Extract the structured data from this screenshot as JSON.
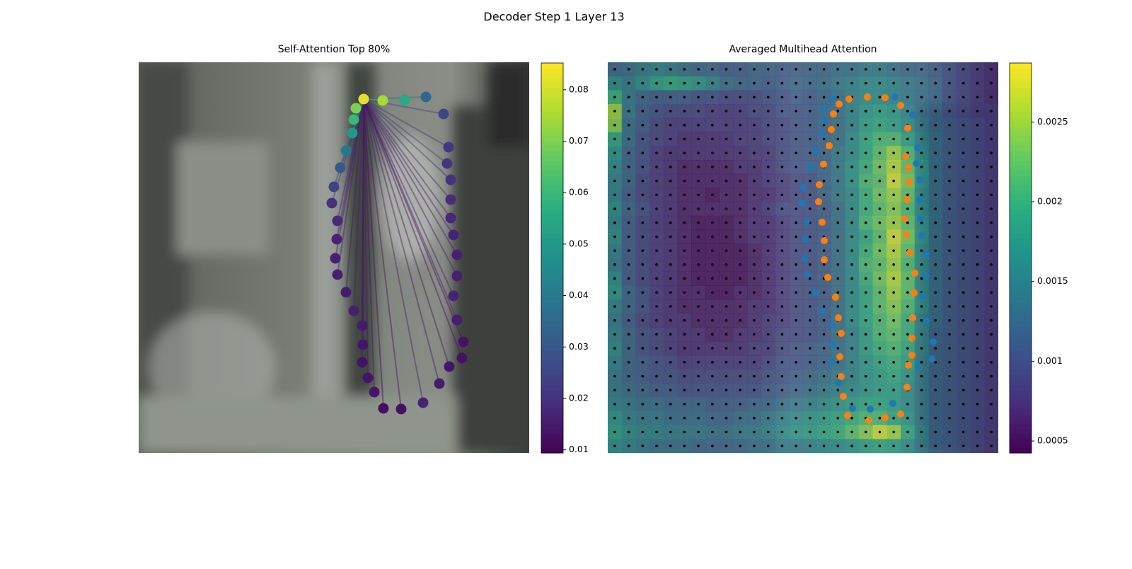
{
  "title": "Decoder Step 1 Layer 13",
  "chart_data": [
    {
      "type": "scatter",
      "title": "Self-Attention Top 80%",
      "colormap": "viridis",
      "xlim": [
        0,
        552
      ],
      "ylim": [
        552,
        0
      ],
      "clim": [
        0.0094,
        0.0852
      ],
      "cticks": [
        0.01,
        0.02,
        0.03,
        0.04,
        0.05,
        0.06,
        0.07,
        0.08
      ],
      "x": [
        318,
        345,
        376,
        406,
        431,
        438,
        436,
        441,
        441,
        441,
        445,
        450,
        450,
        445,
        450,
        459,
        457,
        439,
        425,
        402,
        371,
        346,
        333,
        324,
        316,
        317,
        316,
        304,
        293,
        281,
        278,
        280,
        281,
        273,
        276,
        285,
        293,
        302,
        304,
        307
      ],
      "y": [
        52,
        54,
        53,
        49,
        73,
        120,
        143,
        166,
        194,
        220,
        244,
        272,
        302,
        330,
        364,
        395,
        418,
        430,
        454,
        481,
        490,
        489,
        466,
        446,
        424,
        399,
        372,
        351,
        325,
        300,
        277,
        250,
        224,
        199,
        176,
        149,
        125,
        100,
        81,
        65
      ],
      "values": [
        0.082,
        0.075,
        0.055,
        0.035,
        0.025,
        0.022,
        0.021,
        0.02,
        0.019,
        0.018,
        0.017,
        0.016,
        0.016,
        0.017,
        0.016,
        0.013,
        0.013,
        0.014,
        0.015,
        0.017,
        0.013,
        0.012,
        0.014,
        0.014,
        0.013,
        0.014,
        0.015,
        0.016,
        0.015,
        0.016,
        0.016,
        0.017,
        0.018,
        0.02,
        0.024,
        0.03,
        0.04,
        0.05,
        0.06,
        0.07
      ]
    },
    {
      "type": "heatmap",
      "title": "Averaged Multihead Attention",
      "colormap": "viridis",
      "xlim": [
        0,
        552
      ],
      "ylim": [
        552,
        0
      ],
      "clim": [
        0.000425,
        0.00287
      ],
      "cticks": [
        0.0005,
        0.001,
        0.0015,
        0.002,
        0.0025
      ],
      "z": [
        [
          0.0012,
          0.0013,
          0.0014,
          0.0015,
          0.0014,
          0.0013,
          0.0012,
          0.0012,
          0.0011,
          0.0011,
          0.0012,
          0.0012,
          0.0011,
          0.0011,
          0.0012,
          0.0012,
          0.0013,
          0.0013,
          0.0014,
          0.0014,
          0.0013,
          0.0012,
          0.0012,
          0.0011,
          0.001,
          0.0009,
          0.0008,
          0.0007
        ],
        [
          0.0016,
          0.0014,
          0.0016,
          0.0018,
          0.0019,
          0.0018,
          0.0017,
          0.0015,
          0.0013,
          0.0012,
          0.0012,
          0.0011,
          0.0011,
          0.0012,
          0.0012,
          0.0013,
          0.0014,
          0.0015,
          0.0016,
          0.0016,
          0.0015,
          0.0014,
          0.0013,
          0.0012,
          0.001,
          0.0009,
          0.0008,
          0.0007
        ],
        [
          0.002,
          0.0014,
          0.0012,
          0.0011,
          0.0011,
          0.0011,
          0.001,
          0.001,
          0.0009,
          0.0009,
          0.0009,
          0.001,
          0.001,
          0.0011,
          0.0011,
          0.0012,
          0.0013,
          0.0015,
          0.0016,
          0.0016,
          0.0015,
          0.0014,
          0.0013,
          0.0012,
          0.001,
          0.0009,
          0.0008,
          0.0007
        ],
        [
          0.0025,
          0.0014,
          0.0011,
          0.001,
          0.0009,
          0.0009,
          0.0009,
          0.0008,
          0.0008,
          0.0008,
          0.0009,
          0.0009,
          0.001,
          0.001,
          0.0011,
          0.0012,
          0.0013,
          0.0015,
          0.0017,
          0.0018,
          0.0017,
          0.0015,
          0.0013,
          0.0012,
          0.001,
          0.0009,
          0.0008,
          0.0008
        ],
        [
          0.0024,
          0.0013,
          0.0011,
          0.0009,
          0.0008,
          0.0008,
          0.0008,
          0.0008,
          0.0008,
          0.0008,
          0.0008,
          0.0009,
          0.0009,
          0.001,
          0.0011,
          0.0012,
          0.0013,
          0.0015,
          0.0018,
          0.0019,
          0.0018,
          0.0016,
          0.0014,
          0.0012,
          0.0011,
          0.001,
          0.0009,
          0.0008
        ],
        [
          0.0019,
          0.0013,
          0.001,
          0.0009,
          0.0008,
          0.0007,
          0.0007,
          0.0007,
          0.0007,
          0.0008,
          0.0008,
          0.0009,
          0.0009,
          0.001,
          0.0011,
          0.0012,
          0.0013,
          0.0016,
          0.0019,
          0.0021,
          0.0021,
          0.0018,
          0.0015,
          0.0013,
          0.0011,
          0.001,
          0.0009,
          0.0008
        ],
        [
          0.0017,
          0.0012,
          0.001,
          0.0008,
          0.0007,
          0.0007,
          0.0007,
          0.0007,
          0.0007,
          0.0007,
          0.0008,
          0.0008,
          0.0009,
          0.001,
          0.0011,
          0.0012,
          0.0014,
          0.0016,
          0.0019,
          0.0022,
          0.0025,
          0.0021,
          0.0016,
          0.0013,
          0.0011,
          0.001,
          0.0009,
          0.0008
        ],
        [
          0.0016,
          0.0012,
          0.001,
          0.0008,
          0.0007,
          0.0006,
          0.0006,
          0.0006,
          0.0006,
          0.0007,
          0.0007,
          0.0008,
          0.0009,
          0.001,
          0.0011,
          0.0012,
          0.0014,
          0.0017,
          0.002,
          0.0023,
          0.0026,
          0.0022,
          0.0017,
          0.0013,
          0.0011,
          0.001,
          0.0009,
          0.0008
        ],
        [
          0.0015,
          0.0012,
          0.0009,
          0.0008,
          0.0007,
          0.0006,
          0.0006,
          0.0006,
          0.0006,
          0.0006,
          0.0007,
          0.0008,
          0.0008,
          0.0009,
          0.001,
          0.0012,
          0.0014,
          0.0017,
          0.0021,
          0.0022,
          0.0027,
          0.0023,
          0.0017,
          0.0013,
          0.0011,
          0.001,
          0.0009,
          0.0008
        ],
        [
          0.0015,
          0.0011,
          0.0009,
          0.0008,
          0.0007,
          0.0006,
          0.0006,
          0.0005,
          0.0006,
          0.0006,
          0.0007,
          0.0007,
          0.0008,
          0.0009,
          0.001,
          0.0012,
          0.0014,
          0.0016,
          0.002,
          0.0023,
          0.0025,
          0.0022,
          0.0016,
          0.0013,
          0.0011,
          0.001,
          0.0009,
          0.0008
        ],
        [
          0.0016,
          0.0012,
          0.001,
          0.0008,
          0.0007,
          0.0006,
          0.0006,
          0.0006,
          0.0006,
          0.0006,
          0.0007,
          0.0008,
          0.0009,
          0.0009,
          0.001,
          0.0011,
          0.0013,
          0.0016,
          0.002,
          0.0022,
          0.0024,
          0.0021,
          0.0016,
          0.0013,
          0.0011,
          0.001,
          0.0009,
          0.0008
        ],
        [
          0.0015,
          0.0011,
          0.0009,
          0.0008,
          0.0007,
          0.0006,
          0.0005,
          0.0005,
          0.0005,
          0.0006,
          0.0007,
          0.0007,
          0.0008,
          0.0009,
          0.001,
          0.0011,
          0.0013,
          0.0016,
          0.0021,
          0.0023,
          0.0025,
          0.0022,
          0.0017,
          0.0013,
          0.0011,
          0.001,
          0.0009,
          0.0008
        ],
        [
          0.0016,
          0.0011,
          0.0009,
          0.0008,
          0.0007,
          0.0006,
          0.0005,
          0.0005,
          0.0005,
          0.0006,
          0.0007,
          0.0007,
          0.0008,
          0.0009,
          0.001,
          0.0011,
          0.0013,
          0.0016,
          0.0019,
          0.0022,
          0.0027,
          0.0023,
          0.0017,
          0.0013,
          0.0011,
          0.001,
          0.0009,
          0.0008
        ],
        [
          0.0015,
          0.0011,
          0.0009,
          0.0008,
          0.0007,
          0.0006,
          0.0005,
          0.0005,
          0.0005,
          0.0005,
          0.0006,
          0.0007,
          0.0008,
          0.0009,
          0.001,
          0.0011,
          0.0013,
          0.0016,
          0.002,
          0.0023,
          0.0026,
          0.0022,
          0.0016,
          0.0013,
          0.0011,
          0.001,
          0.0009,
          0.0008
        ],
        [
          0.0014,
          0.0011,
          0.0009,
          0.0008,
          0.0007,
          0.0006,
          0.0005,
          0.0005,
          0.0005,
          0.0005,
          0.0006,
          0.0007,
          0.0008,
          0.0009,
          0.001,
          0.0011,
          0.0013,
          0.0016,
          0.0021,
          0.0022,
          0.0025,
          0.0021,
          0.0016,
          0.0013,
          0.0011,
          0.001,
          0.0009,
          0.0008
        ],
        [
          0.0016,
          0.0011,
          0.0009,
          0.0008,
          0.0007,
          0.0006,
          0.0005,
          0.0005,
          0.0005,
          0.0005,
          0.0006,
          0.0007,
          0.0008,
          0.0009,
          0.001,
          0.0011,
          0.0013,
          0.0016,
          0.002,
          0.0023,
          0.0026,
          0.0022,
          0.0016,
          0.0013,
          0.0011,
          0.001,
          0.0009,
          0.0008
        ],
        [
          0.0017,
          0.0012,
          0.001,
          0.0008,
          0.0007,
          0.0006,
          0.0006,
          0.0005,
          0.0005,
          0.0006,
          0.0006,
          0.0007,
          0.0008,
          0.0009,
          0.001,
          0.0011,
          0.0013,
          0.0016,
          0.0019,
          0.0022,
          0.0025,
          0.0022,
          0.0016,
          0.0013,
          0.0011,
          0.001,
          0.0009,
          0.0008
        ],
        [
          0.0015,
          0.0012,
          0.001,
          0.0008,
          0.0007,
          0.0006,
          0.0006,
          0.0006,
          0.0006,
          0.0006,
          0.0007,
          0.0007,
          0.0008,
          0.0009,
          0.001,
          0.0011,
          0.0013,
          0.0016,
          0.0019,
          0.0022,
          0.0024,
          0.0021,
          0.0016,
          0.0013,
          0.0011,
          0.001,
          0.0009,
          0.0008
        ],
        [
          0.0014,
          0.0011,
          0.0009,
          0.0008,
          0.0007,
          0.0007,
          0.0006,
          0.0006,
          0.0006,
          0.0006,
          0.0007,
          0.0008,
          0.0008,
          0.0009,
          0.001,
          0.0011,
          0.0013,
          0.0016,
          0.0019,
          0.0021,
          0.0023,
          0.002,
          0.0015,
          0.0013,
          0.0011,
          0.001,
          0.0009,
          0.0008
        ],
        [
          0.0015,
          0.0012,
          0.001,
          0.0009,
          0.0008,
          0.0007,
          0.0007,
          0.0006,
          0.0006,
          0.0007,
          0.0007,
          0.0008,
          0.0009,
          0.0009,
          0.001,
          0.0011,
          0.0013,
          0.0015,
          0.0018,
          0.0021,
          0.0022,
          0.002,
          0.0015,
          0.0012,
          0.0011,
          0.001,
          0.0009,
          0.0008
        ],
        [
          0.0016,
          0.0012,
          0.001,
          0.0009,
          0.0008,
          0.0007,
          0.0007,
          0.0007,
          0.0007,
          0.0007,
          0.0008,
          0.0008,
          0.0009,
          0.001,
          0.0011,
          0.0012,
          0.0013,
          0.0015,
          0.0018,
          0.002,
          0.0021,
          0.0019,
          0.0015,
          0.0012,
          0.0011,
          0.001,
          0.0009,
          0.0008
        ],
        [
          0.0015,
          0.0012,
          0.0011,
          0.001,
          0.0009,
          0.0008,
          0.0008,
          0.0008,
          0.0008,
          0.0008,
          0.0008,
          0.0009,
          0.001,
          0.001,
          0.0011,
          0.0012,
          0.0013,
          0.0015,
          0.0017,
          0.0019,
          0.002,
          0.0018,
          0.0014,
          0.0012,
          0.0011,
          0.001,
          0.0009,
          0.0008
        ],
        [
          0.0014,
          0.0012,
          0.0011,
          0.001,
          0.001,
          0.0009,
          0.0009,
          0.0009,
          0.0009,
          0.0009,
          0.0009,
          0.001,
          0.001,
          0.0011,
          0.0012,
          0.0013,
          0.0014,
          0.0015,
          0.0017,
          0.0018,
          0.0019,
          0.0017,
          0.0014,
          0.0012,
          0.0011,
          0.001,
          0.0009,
          0.0008
        ],
        [
          0.0014,
          0.0013,
          0.0012,
          0.0011,
          0.0011,
          0.001,
          0.001,
          0.001,
          0.001,
          0.001,
          0.001,
          0.0011,
          0.0011,
          0.0012,
          0.0013,
          0.0014,
          0.0015,
          0.0016,
          0.0017,
          0.0018,
          0.0018,
          0.0016,
          0.0014,
          0.0012,
          0.0011,
          0.001,
          0.0009,
          0.0008
        ],
        [
          0.0015,
          0.0014,
          0.0013,
          0.0013,
          0.0012,
          0.0012,
          0.0012,
          0.0011,
          0.0011,
          0.0011,
          0.0012,
          0.0012,
          0.0013,
          0.0014,
          0.0015,
          0.0016,
          0.0017,
          0.0018,
          0.0019,
          0.0019,
          0.0018,
          0.0016,
          0.0014,
          0.0012,
          0.0011,
          0.001,
          0.0009,
          0.0008
        ],
        [
          0.0017,
          0.0015,
          0.0014,
          0.0014,
          0.0013,
          0.0013,
          0.0013,
          0.0012,
          0.0012,
          0.0013,
          0.0013,
          0.0014,
          0.0015,
          0.0016,
          0.0017,
          0.0018,
          0.0019,
          0.002,
          0.0021,
          0.0021,
          0.0019,
          0.0017,
          0.0014,
          0.0012,
          0.0011,
          0.001,
          0.0009,
          0.0008
        ],
        [
          0.0018,
          0.0016,
          0.0015,
          0.0015,
          0.0014,
          0.0014,
          0.0014,
          0.0013,
          0.0013,
          0.0014,
          0.0014,
          0.0015,
          0.0016,
          0.0017,
          0.0018,
          0.0019,
          0.002,
          0.0022,
          0.0024,
          0.0027,
          0.0025,
          0.0019,
          0.0015,
          0.0012,
          0.0011,
          0.001,
          0.0009,
          0.0008
        ],
        [
          0.0016,
          0.0015,
          0.0014,
          0.0013,
          0.0013,
          0.0013,
          0.0012,
          0.0012,
          0.0012,
          0.0012,
          0.0013,
          0.0013,
          0.0014,
          0.0014,
          0.0015,
          0.0016,
          0.0016,
          0.0017,
          0.0018,
          0.0019,
          0.0018,
          0.0016,
          0.0014,
          0.0012,
          0.0011,
          0.001,
          0.0009,
          0.0008
        ]
      ],
      "series": [
        {
          "color": "#1f77b4",
          "x": [
            318,
            307,
            304,
            303,
            294,
            286,
            276,
            274,
            281,
            279,
            278,
            282,
            293,
            304,
            317,
            318,
            317,
            326,
            333,
            346,
            371,
            403,
            439,
            458,
            460,
            450,
            445,
            450,
            450,
            444,
            442,
            441,
            441,
            436,
            438,
            431,
            406
          ],
          "y": [
            52,
            67,
            82,
            101,
            125,
            149,
            177,
            199,
            225,
            250,
            277,
            300,
            325,
            352,
            371,
            400,
            424,
            453,
            472,
            489,
            490,
            482,
            430,
            419,
            395,
            365,
            330,
            302,
            272,
            245,
            221,
            194,
            166,
            143,
            121,
            74,
            49
          ]
        },
        {
          "color": "#ff7f0e",
          "x": [
            327,
            341,
            367,
            392,
            414,
            424,
            421,
            425,
            426,
            423,
            420,
            422,
            427,
            434,
            433,
            431,
            430,
            430,
            425,
            423,
            414,
            392,
            369,
            339,
            333,
            330,
            328,
            330,
            326,
            322,
            311,
            306,
            306,
            303,
            298,
            299,
            305,
            313,
            316,
            319
          ],
          "y": [
            59,
            52,
            49,
            50,
            61,
            93,
            133,
            149,
            169,
            194,
            221,
            244,
            269,
            298,
            326,
            361,
            390,
            414,
            428,
            459,
            497,
            502,
            506,
            499,
            472,
            444,
            416,
            383,
            361,
            332,
            304,
            279,
            252,
            226,
            197,
            173,
            144,
            118,
            95,
            73
          ]
        }
      ]
    }
  ]
}
